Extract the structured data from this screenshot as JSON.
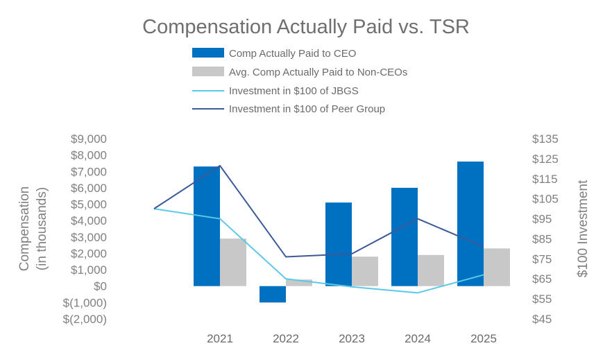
{
  "chart_data": {
    "type": "bar",
    "title": "Compensation Actually Paid vs. TSR",
    "categories": [
      "2021",
      "2022",
      "2023",
      "2024",
      "2025"
    ],
    "ylabel_left": [
      "Compensation",
      "(in thousands)"
    ],
    "ylabel_right": "$100 Investment",
    "ylim_left": [
      -2000,
      9000
    ],
    "ylim_right": [
      45,
      135
    ],
    "yticks_left": [
      {
        "value": 9000,
        "label": "$9,000"
      },
      {
        "value": 8000,
        "label": "$8,000"
      },
      {
        "value": 7000,
        "label": "$7,000"
      },
      {
        "value": 6000,
        "label": "$6,000"
      },
      {
        "value": 5000,
        "label": "$5,000"
      },
      {
        "value": 4000,
        "label": "$4,000"
      },
      {
        "value": 3000,
        "label": "$3,000"
      },
      {
        "value": 2000,
        "label": "$2,000"
      },
      {
        "value": 1000,
        "label": "$1,000"
      },
      {
        "value": 0,
        "label": "$0"
      },
      {
        "value": -1000,
        "label": "$(1,000)"
      },
      {
        "value": -2000,
        "label": "$(2,000)"
      }
    ],
    "yticks_right": [
      {
        "value": 135,
        "label": "$135"
      },
      {
        "value": 125,
        "label": "$125"
      },
      {
        "value": 115,
        "label": "$115"
      },
      {
        "value": 105,
        "label": "$105"
      },
      {
        "value": 95,
        "label": "$95"
      },
      {
        "value": 85,
        "label": "$85"
      },
      {
        "value": 75,
        "label": "$75"
      },
      {
        "value": 65,
        "label": "$65"
      },
      {
        "value": 55,
        "label": "$55"
      },
      {
        "value": 45,
        "label": "$45"
      }
    ],
    "grid": false,
    "legend_position": "top-center",
    "series": [
      {
        "name": "Comp Actually Paid to CEO",
        "kind": "bar",
        "axis": "left",
        "color": "#0070c0",
        "values": [
          7300,
          -1000,
          5100,
          6000,
          7600
        ]
      },
      {
        "name": "Avg. Comp Actually Paid to Non-CEOs",
        "kind": "bar",
        "axis": "left",
        "color": "#c8c8c8",
        "values": [
          2900,
          400,
          1800,
          1900,
          2300
        ]
      },
      {
        "name": "Investment in $100 of JBGS",
        "kind": "line",
        "axis": "right",
        "color": "#5cc8e8",
        "start": 100,
        "values": [
          95,
          65,
          61,
          58,
          67
        ]
      },
      {
        "name": "Investment in $100 of Peer Group",
        "kind": "line",
        "axis": "right",
        "color": "#3b5998",
        "start": 100,
        "values": [
          121.5,
          76,
          77.5,
          95,
          81
        ]
      }
    ]
  }
}
